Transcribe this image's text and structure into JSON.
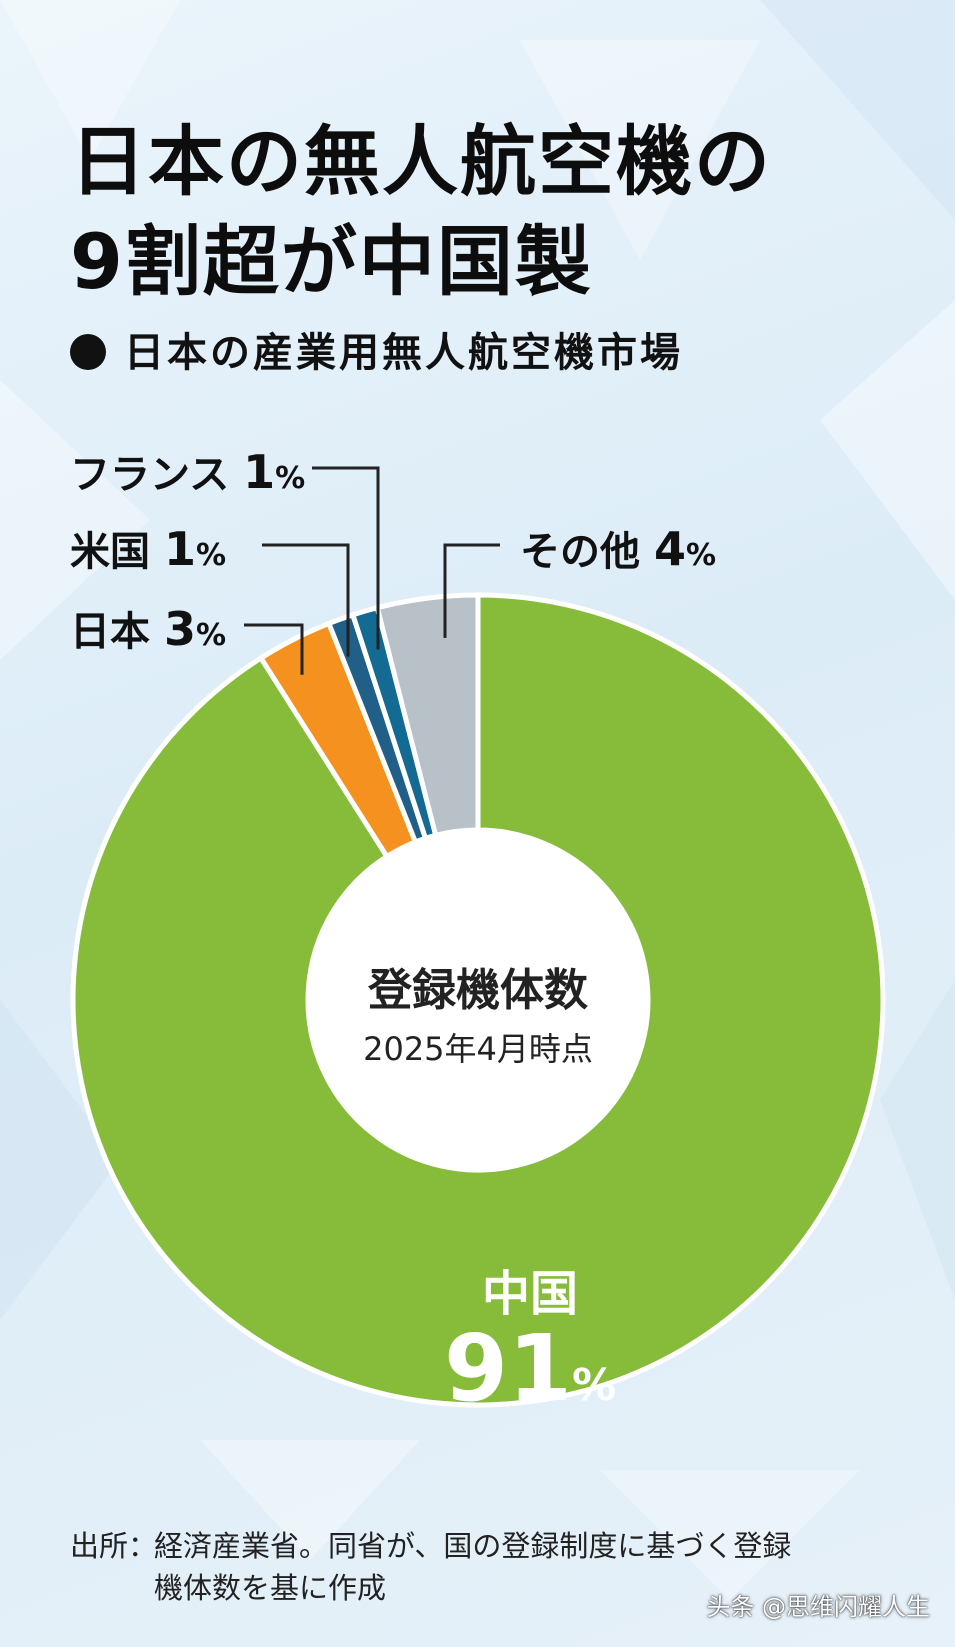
{
  "title_line1": "日本の無人航空機の",
  "title_line2": "9割超が中国製",
  "subtitle": "日本の産業用無人航空機市場",
  "source_label": "出所：",
  "source_line1": "経済産業省。同省が、国の登録制度に基づく登録",
  "source_line2": "機体数を基に作成",
  "watermark": "头条 @思维闪耀人生",
  "chart_data": {
    "type": "pie",
    "center_title": "登録機体数",
    "center_subtitle": "2025年4月時点",
    "slices": [
      {
        "name": "中国",
        "value": 91,
        "label": "91%",
        "color": "#86bc39"
      },
      {
        "name": "日本",
        "value": 3,
        "label": "3%",
        "color": "#f5921f"
      },
      {
        "name": "米国",
        "value": 1,
        "label": "1%",
        "color": "#1f5f88"
      },
      {
        "name": "フランス",
        "value": 1,
        "label": "1%",
        "color": "#136a93"
      },
      {
        "name": "その他",
        "value": 4,
        "label": "4%",
        "color": "#b8c0c8"
      }
    ]
  }
}
